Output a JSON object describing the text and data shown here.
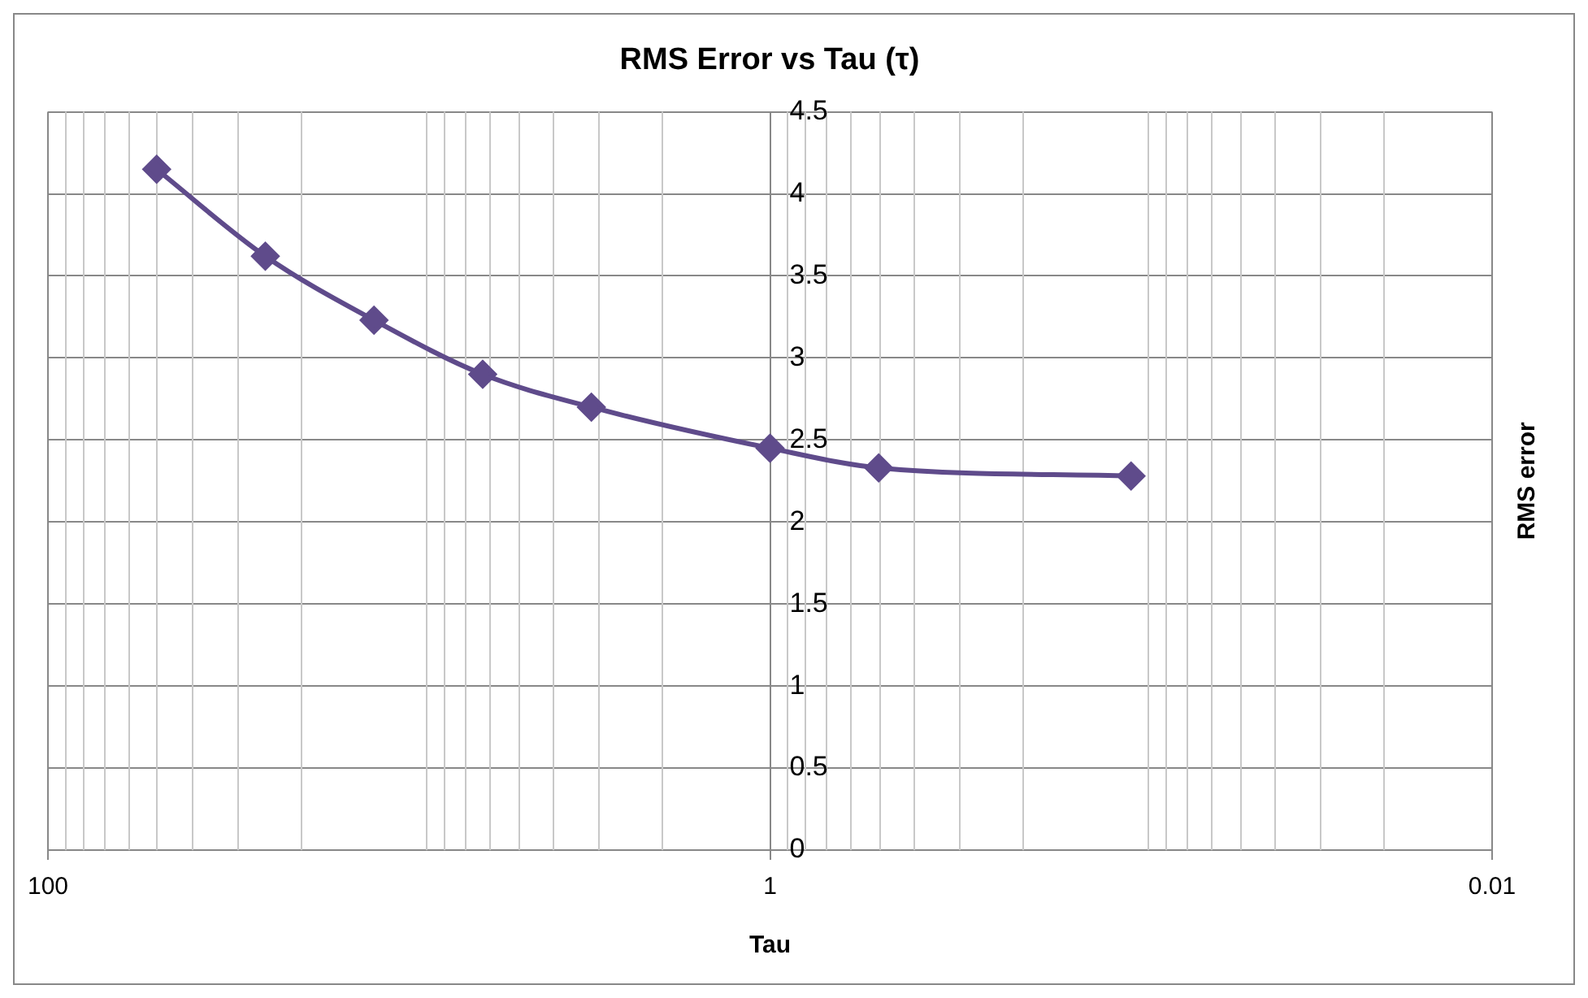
{
  "chart_data": {
    "type": "line",
    "title": "RMS Error vs Tau (τ)",
    "xlabel": "Tau",
    "ylabel": "RMS error",
    "x": [
      50,
      25,
      12.5,
      6.25,
      3.125,
      1,
      0.5,
      0.1
    ],
    "series": [
      {
        "color": "#5f4b8b",
        "values": [
          4.15,
          3.62,
          3.23,
          2.9,
          2.7,
          2.45,
          2.33,
          2.28
        ]
      }
    ],
    "log": "x",
    "xlim": [
      100,
      0.01
    ],
    "xticks": [
      100,
      1,
      0.01
    ],
    "ylim": [
      0,
      4.5
    ],
    "yticks": [
      0,
      0.5,
      1,
      1.5,
      2,
      2.5,
      3,
      3.5,
      4,
      4.5
    ],
    "grid": true,
    "legend": false,
    "marker": "diamond",
    "line_style": "solid"
  }
}
